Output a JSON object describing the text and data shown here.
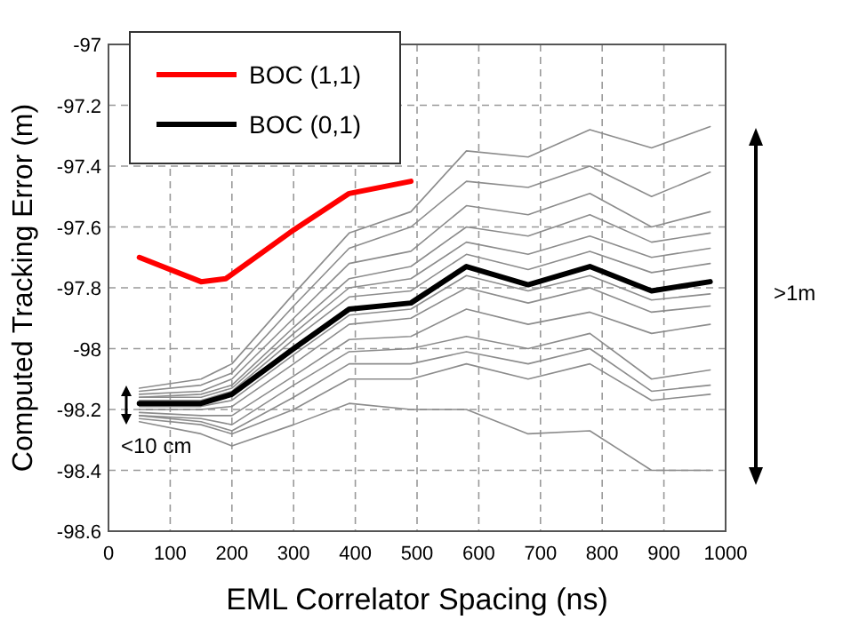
{
  "chart_data": {
    "type": "line",
    "xlabel": "EML Correlator Spacing (ns)",
    "ylabel": "Computed Tracking Error (m)",
    "x": [
      50,
      150,
      200,
      300,
      390,
      490,
      580,
      680,
      780,
      880,
      975
    ],
    "xlim": [
      0,
      1000
    ],
    "xticks": [
      0,
      100,
      200,
      300,
      400,
      500,
      600,
      700,
      800,
      900,
      1000
    ],
    "ylim": [
      -98.6,
      -97
    ],
    "yticks": [
      {
        "value": -98.6,
        "label": "-98.6"
      },
      {
        "value": -98.4,
        "label": "-98.4"
      },
      {
        "value": -98.2,
        "label": "-98.2"
      },
      -98,
      {
        "value": -97.8,
        "label": "-97.8"
      },
      {
        "value": -97.6,
        "label": "-97.6"
      },
      {
        "value": -97.4,
        "label": "-97.4"
      },
      {
        "value": -97.2,
        "label": "-97.2"
      },
      -97
    ],
    "grid": true,
    "legend": "top left",
    "annotations": [
      ">1m",
      "<10 cm"
    ],
    "series": [
      {
        "color": "#8c8c8c",
        "values": [
          -98.13,
          -98.1,
          -98.05,
          -97.82,
          -97.62,
          -97.55,
          -97.35,
          -97.37,
          -97.28,
          -97.34,
          -97.27
        ]
      },
      {
        "color": "#8c8c8c",
        "values": [
          -98.14,
          -98.12,
          -98.08,
          -97.86,
          -97.67,
          -97.6,
          -97.45,
          -97.47,
          -97.4,
          -97.5,
          -97.42
        ]
      },
      {
        "color": "#8c8c8c",
        "values": [
          -98.15,
          -98.14,
          -98.1,
          -97.9,
          -97.72,
          -97.68,
          -97.53,
          -97.56,
          -97.49,
          -97.6,
          -97.55
        ]
      },
      {
        "color": "#8c8c8c",
        "values": [
          -98.16,
          -98.15,
          -98.12,
          -97.93,
          -97.77,
          -97.73,
          -97.6,
          -97.63,
          -97.56,
          -97.65,
          -97.62
        ]
      },
      {
        "color": "#8c8c8c",
        "values": [
          -98.16,
          -98.16,
          -98.13,
          -97.95,
          -97.8,
          -97.77,
          -97.65,
          -97.69,
          -97.63,
          -97.7,
          -97.67
        ]
      },
      {
        "color": "#8c8c8c",
        "values": [
          -98.17,
          -98.17,
          -98.14,
          -97.97,
          -97.83,
          -97.81,
          -97.69,
          -97.74,
          -97.68,
          -97.75,
          -97.72
        ]
      },
      {
        "color": "#8c8c8c",
        "values": [
          -98.19,
          -98.19,
          -98.17,
          -98.02,
          -97.89,
          -97.87,
          -97.76,
          -97.81,
          -97.76,
          -97.84,
          -97.82
        ]
      },
      {
        "color": "#8c8c8c",
        "values": [
          -98.2,
          -98.2,
          -98.19,
          -98.05,
          -97.92,
          -97.9,
          -97.8,
          -97.85,
          -97.8,
          -97.88,
          -97.86
        ]
      },
      {
        "color": "#8c8c8c",
        "values": [
          -98.21,
          -98.22,
          -98.22,
          -98.09,
          -97.97,
          -97.96,
          -97.87,
          -97.92,
          -97.88,
          -97.95,
          -97.92
        ]
      },
      {
        "color": "#8c8c8c",
        "values": [
          -98.22,
          -98.23,
          -98.25,
          -98.12,
          -98.01,
          -98.0,
          -97.96,
          -98.0,
          -97.95,
          -98.1,
          -98.07
        ]
      },
      {
        "color": "#8c8c8c",
        "values": [
          -98.22,
          -98.24,
          -98.27,
          -98.16,
          -98.05,
          -98.05,
          -98.01,
          -98.05,
          -98.0,
          -98.14,
          -98.12
        ]
      },
      {
        "color": "#8c8c8c",
        "values": [
          -98.23,
          -98.25,
          -98.28,
          -98.2,
          -98.1,
          -98.1,
          -98.05,
          -98.1,
          -98.05,
          -98.17,
          -98.15
        ]
      },
      {
        "color": "#8c8c8c",
        "values": [
          -98.24,
          -98.28,
          -98.32,
          -98.25,
          -98.18,
          -98.2,
          -98.2,
          -98.28,
          -98.27,
          -98.4,
          -98.4
        ]
      },
      {
        "name": "BOC (0,1)",
        "color": "#000000",
        "values": [
          -98.18,
          -98.18,
          -98.15,
          -98.0,
          -97.87,
          -97.85,
          -97.73,
          -97.79,
          -97.73,
          -97.81,
          -97.78
        ]
      },
      {
        "name": "BOC (1,1)",
        "color": "#ff0000",
        "x": [
          50,
          150,
          190,
          300,
          390,
          490
        ],
        "values": [
          -97.7,
          -97.78,
          -97.77,
          -97.61,
          -97.49,
          -97.45
        ]
      }
    ]
  }
}
